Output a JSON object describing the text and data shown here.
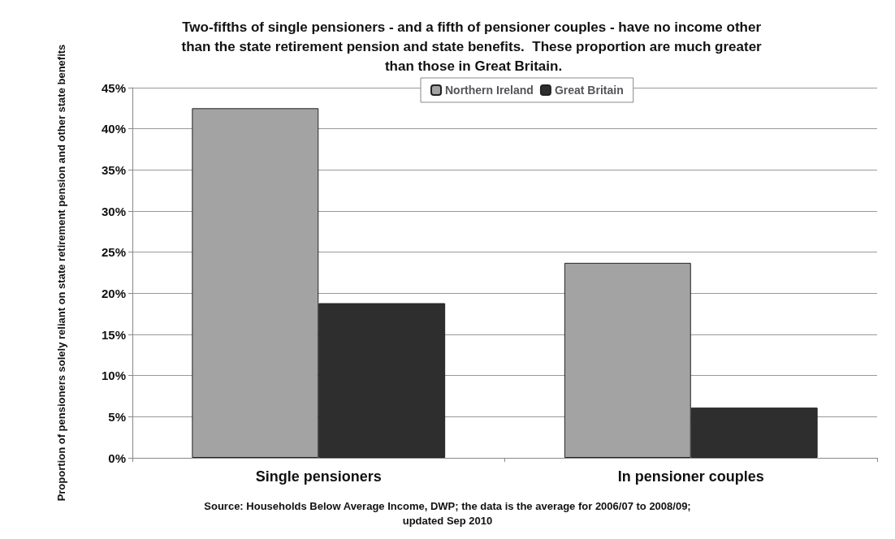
{
  "chart_data": {
    "type": "bar",
    "title": "Two-fifths of single pensioners - and a fifth of pensioner couples - have no income other than the state retirement pension and state benefits.  These proportion are much greater than those in Great Britain.",
    "ylabel": "Proportion of pensioners solely reliant on state retirement pension and other state benefits",
    "categories": [
      "Single pensioners",
      "In pensioner couples"
    ],
    "series": [
      {
        "name": "Northern Ireland",
        "color": "#a3a3a3",
        "values": [
          42.5,
          23.7
        ]
      },
      {
        "name": "Great Britain",
        "color": "#2e2e2e",
        "values": [
          18.8,
          6.1
        ]
      }
    ],
    "ylim": [
      0,
      45
    ],
    "yticks": [
      {
        "value": 0,
        "label": "0%"
      },
      {
        "value": 5,
        "label": "5%"
      },
      {
        "value": 10,
        "label": "10%"
      },
      {
        "value": 15,
        "label": "15%"
      },
      {
        "value": 20,
        "label": "20%"
      },
      {
        "value": 25,
        "label": "25%"
      },
      {
        "value": 30,
        "label": "30%"
      },
      {
        "value": 35,
        "label": "35%"
      },
      {
        "value": 40,
        "label": "40%"
      },
      {
        "value": 45,
        "label": "45%"
      }
    ],
    "grid": "y",
    "legend": "top",
    "annotations": [
      "Source: Households Below Average Income, DWP; the data is the average for 2006/07 to 2008/09;\nupdated Sep 2010"
    ]
  }
}
